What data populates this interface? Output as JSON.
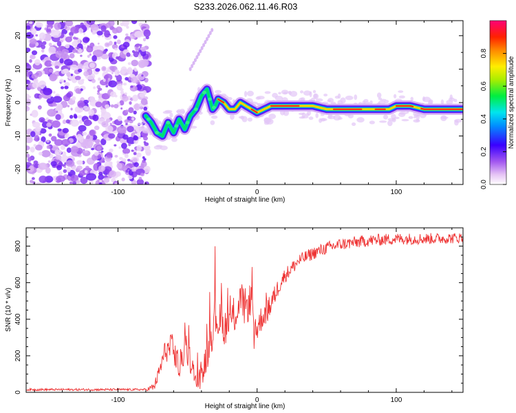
{
  "title": "S233.2026.062.11.46.R03",
  "chart_data": [
    {
      "type": "heatmap",
      "name": "spectrogram",
      "xlabel": "Height of straight line (km)",
      "ylabel": "Frequency (Hz)",
      "xlim": [
        -166,
        148
      ],
      "ylim": [
        -24.5,
        24.5
      ],
      "xticks": [
        -100,
        0,
        100
      ],
      "yticks": [
        -20,
        -10,
        0,
        10,
        20
      ],
      "ridge": {
        "x": [
          -80,
          -76,
          -72,
          -68,
          -64,
          -60,
          -56,
          -52,
          -48,
          -44,
          -40,
          -36,
          -32,
          -30,
          -28,
          -24,
          -20,
          -16,
          -12,
          -8,
          -4,
          0,
          10,
          20,
          30,
          40,
          50,
          60,
          70,
          80,
          85,
          90,
          95,
          100,
          105,
          110,
          120,
          130,
          140,
          148
        ],
        "y": [
          -4,
          -6,
          -9,
          -10,
          -6,
          -9,
          -5,
          -8,
          -4,
          -2,
          2,
          4,
          -2,
          -1,
          1,
          0,
          -2,
          -2,
          0,
          -1,
          -2,
          -3,
          -1,
          -1,
          -1,
          -1,
          -2,
          -2,
          -2,
          -2,
          -2,
          -2,
          -2,
          -1,
          -1,
          -1,
          -2,
          -2,
          -2,
          -2
        ]
      },
      "colorbar": {
        "label": "Normalized spectral amplitude",
        "range": [
          0,
          1
        ],
        "ticks": [
          "0.0",
          "0.2",
          "0.4",
          "0.6",
          "0.8"
        ]
      }
    },
    {
      "type": "line",
      "name": "snr",
      "xlabel": "Height of straight line (km)",
      "ylabel": "SNR (10 * v/v)",
      "xlim": [
        -166,
        148
      ],
      "ylim": [
        0,
        900
      ],
      "xticks": [
        -100,
        0,
        100
      ],
      "yticks": [
        0,
        200,
        400,
        600,
        800
      ],
      "color": "#ee3333",
      "envelope": {
        "x": [
          -166,
          -80,
          -74,
          -70,
          -66,
          -60,
          -56,
          -52,
          -48,
          -44,
          -40,
          -36,
          -30,
          -24,
          -20,
          -16,
          -12,
          -8,
          -4,
          -2,
          0,
          4,
          8,
          12,
          16,
          20,
          30,
          40,
          50,
          60,
          80,
          100,
          120,
          148
        ],
        "y": [
          15,
          15,
          30,
          120,
          230,
          240,
          130,
          240,
          180,
          50,
          90,
          200,
          420,
          350,
          390,
          420,
          500,
          460,
          520,
          280,
          350,
          420,
          450,
          520,
          590,
          640,
          720,
          760,
          790,
          810,
          830,
          840,
          840,
          845
        ]
      },
      "noise_amplitude": {
        "x": [
          -166,
          -80,
          -74,
          -60,
          -40,
          -30,
          -20,
          -10,
          0,
          20,
          40,
          148
        ],
        "y": [
          6,
          6,
          25,
          90,
          60,
          120,
          90,
          110,
          80,
          40,
          35,
          30
        ]
      }
    }
  ]
}
